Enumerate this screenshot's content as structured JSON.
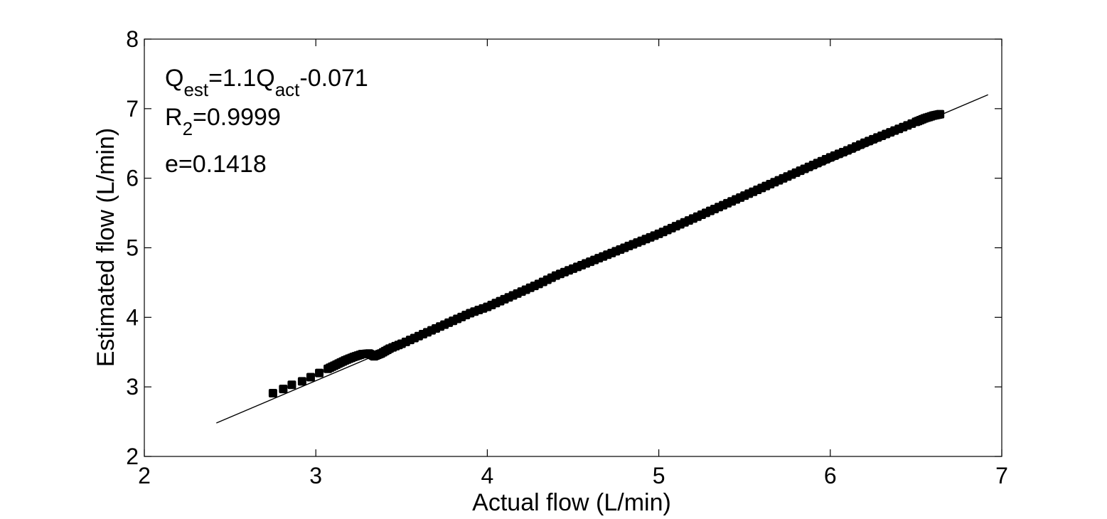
{
  "chart_data": {
    "type": "scatter",
    "xlabel": "Actual flow (L/min)",
    "ylabel": "Estimated flow (L/min)",
    "xlim": [
      2,
      7
    ],
    "ylim": [
      2,
      8
    ],
    "xticks": [
      "2",
      "3",
      "4",
      "5",
      "6",
      "7"
    ],
    "yticks": [
      "2",
      "3",
      "4",
      "5",
      "6",
      "7",
      "8"
    ],
    "grid": false,
    "annotations": {
      "equation": {
        "lhs": "Q",
        "lhs_sub": "est",
        "mid": "=1.1Q",
        "mid_sub": "act",
        "rhs": "-0.071"
      },
      "r2": {
        "base": "R",
        "sub": "2",
        "rest": "=0.9999"
      },
      "error": "e=0.1418"
    },
    "fit_line": {
      "x": [
        2.42,
        6.92
      ],
      "y": [
        2.48,
        7.2
      ]
    },
    "series": [
      {
        "marker": "filled-square",
        "color": "#000000",
        "x": [
          2.75,
          2.81,
          2.86,
          2.92,
          2.97,
          3.02,
          3.07,
          3.12,
          3.17,
          3.22,
          3.27,
          3.31,
          3.34,
          3.38,
          3.43,
          3.5,
          3.6,
          3.7,
          3.8,
          3.9,
          4.0,
          4.1,
          4.2,
          4.3,
          4.4,
          4.5,
          4.6,
          4.7,
          4.8,
          4.9,
          5.0,
          5.1,
          5.2,
          5.3,
          5.4,
          5.5,
          5.6,
          5.7,
          5.8,
          5.9,
          6.0,
          6.1,
          6.2,
          6.3,
          6.4,
          6.5,
          6.55,
          6.6,
          6.64
        ],
        "y": [
          2.91,
          2.97,
          3.03,
          3.08,
          3.14,
          3.2,
          3.26,
          3.32,
          3.38,
          3.43,
          3.47,
          3.48,
          3.44,
          3.48,
          3.55,
          3.62,
          3.73,
          3.84,
          3.95,
          4.06,
          4.15,
          4.26,
          4.37,
          4.48,
          4.6,
          4.7,
          4.8,
          4.9,
          5.0,
          5.1,
          5.2,
          5.31,
          5.42,
          5.53,
          5.64,
          5.75,
          5.86,
          5.97,
          6.08,
          6.19,
          6.3,
          6.4,
          6.51,
          6.61,
          6.71,
          6.81,
          6.86,
          6.9,
          6.92
        ]
      }
    ]
  }
}
